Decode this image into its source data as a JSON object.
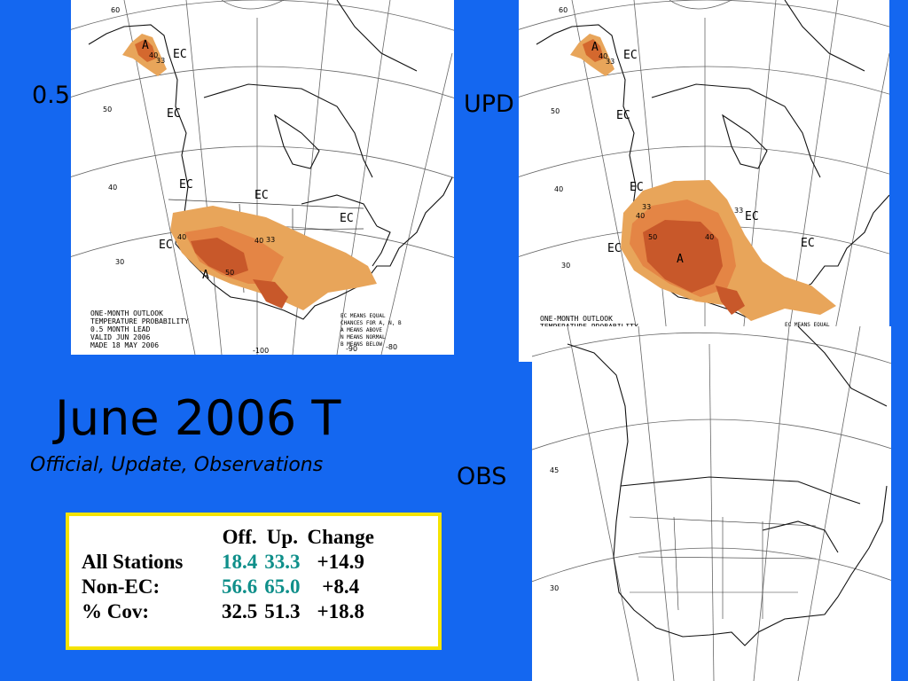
{
  "labels": {
    "official": "0.5",
    "update": "UPD",
    "obs": "OBS"
  },
  "title": "June 2006 T",
  "subtitle": "Official, Update, Observations",
  "table": {
    "headers": [
      "",
      "Off.",
      "Up.",
      "Change"
    ],
    "rows": [
      {
        "label": "All Stations",
        "off": "18.4",
        "up": "33.3",
        "change": "+14.9"
      },
      {
        "label": "Non-EC:",
        "off": "56.6",
        "up": "65.0",
        "change": "+8.4"
      },
      {
        "label": "% Cov:",
        "off": "32.5",
        "up": "51.3",
        "change": "+18.8"
      }
    ]
  },
  "map_official": {
    "lat_labels": [
      "60",
      "50",
      "40",
      "30"
    ],
    "lon_labels": [
      "-100",
      "-90",
      "-80"
    ],
    "region_labels": [
      "EC",
      "EC",
      "EC",
      "EC",
      "EC",
      "EC",
      "A",
      "A"
    ],
    "contour_labels": [
      "40",
      "33",
      "40",
      "33",
      "40",
      "50"
    ],
    "caption": [
      "ONE-MONTH OUTLOOK",
      "TEMPERATURE PROBABILITY",
      "0.5 MONTH LEAD",
      "VALID JUN 2006",
      "MADE 18 MAY 2006"
    ],
    "legend": [
      "EC MEANS EQUAL",
      "CHANCES FOR A, N, B",
      "A MEANS ABOVE",
      "N MEANS NORMAL",
      "B MEANS BELOW"
    ]
  },
  "map_update": {
    "lat_labels": [
      "60",
      "50",
      "40",
      "30"
    ],
    "region_labels": [
      "EC",
      "EC",
      "EC",
      "EC",
      "EC",
      "EC",
      "A",
      "A"
    ],
    "contour_labels": [
      "40",
      "33",
      "40",
      "33",
      "50",
      "40",
      "33"
    ],
    "caption": [
      "ONE-MONTH OUTLOOK",
      "TEMPERATURE PROBABILITY"
    ],
    "legend": [
      "EC MEANS EQUAL"
    ]
  },
  "map_obs": {
    "lat_labels": [
      "45",
      "30"
    ],
    "colors": {
      "above": "#e8001c",
      "below": "#0018e6",
      "normal": "#000000"
    }
  }
}
